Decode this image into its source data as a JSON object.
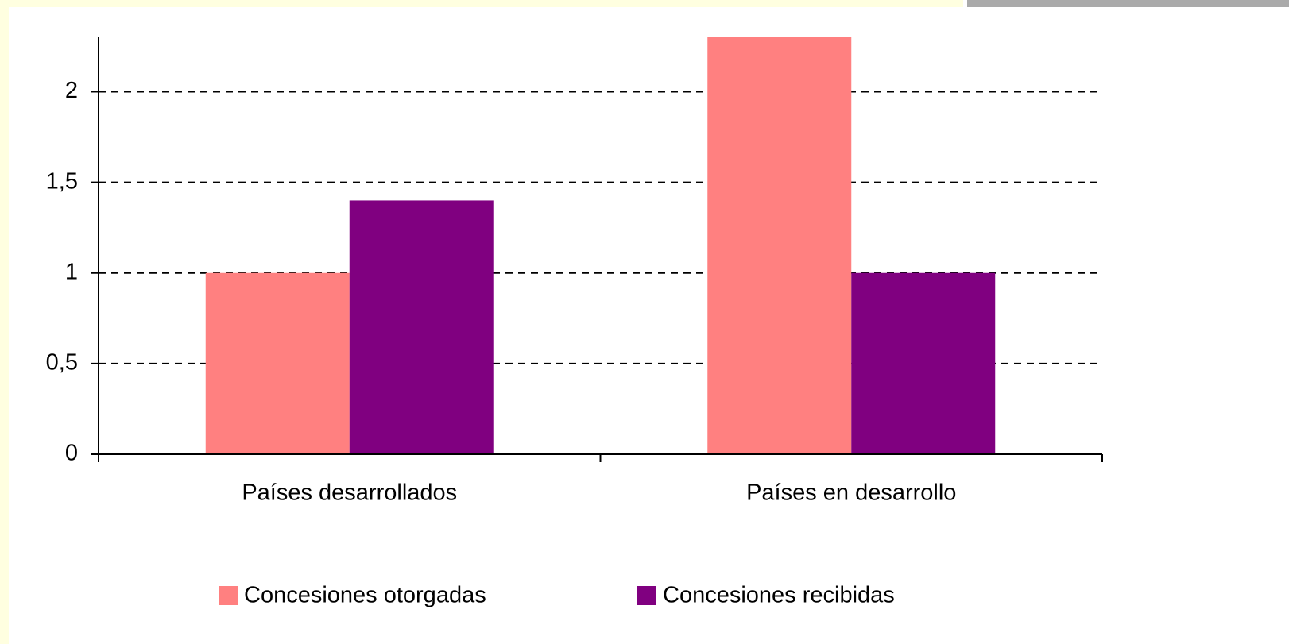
{
  "chart_data": {
    "type": "bar",
    "categories": [
      "Países desarrollados",
      "Países en desarrollo"
    ],
    "series": [
      {
        "name": "Concesiones otorgadas",
        "color": "#ff8080",
        "values": [
          1,
          2.3
        ]
      },
      {
        "name": "Concesiones recibidas",
        "color": "#800080",
        "values": [
          1.4,
          1
        ]
      }
    ],
    "ylim": [
      0,
      2.3
    ],
    "yticks": [
      0,
      {
        "value": 0.5,
        "label": "0,5"
      },
      1,
      {
        "value": 1.5,
        "label": "1,5"
      },
      2
    ],
    "grid": true,
    "legend": "bottom"
  }
}
